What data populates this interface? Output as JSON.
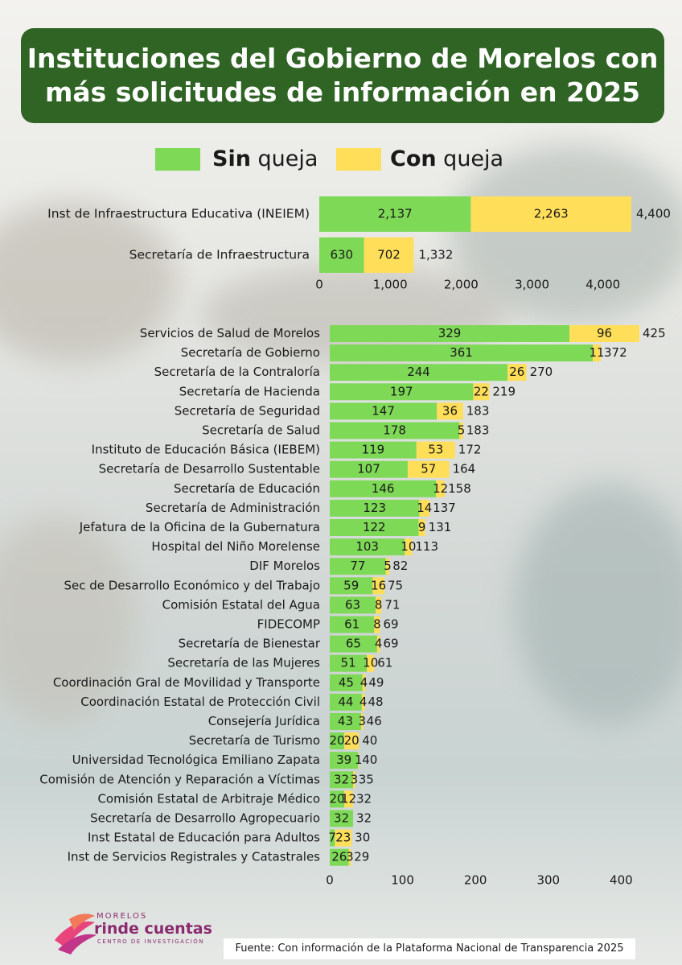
{
  "title": {
    "line1": "Instituciones del Gobierno de Morelos con",
    "line2": "más solicitudes de información en 2025"
  },
  "legend": {
    "sin_bold": "Sin",
    "sin_rest": " queja",
    "con_bold": "Con",
    "con_rest": " queja"
  },
  "colors": {
    "sin_queja": "#7ed957",
    "con_queja": "#ffde59",
    "title_bg": "#2f6424"
  },
  "chart_data": [
    {
      "type": "bar",
      "orientation": "horizontal",
      "stacked": true,
      "categories": [
        "Inst de Infraestructura Educativa (INEIEM)",
        "Secretaría de Infraestructura"
      ],
      "series": [
        {
          "name": "Sin queja",
          "values": [
            2137,
            630
          ],
          "labels": [
            "2,137",
            "630"
          ]
        },
        {
          "name": "Con queja",
          "values": [
            2263,
            702
          ],
          "labels": [
            "2,263",
            "702"
          ]
        }
      ],
      "totals": [
        4400,
        1332
      ],
      "total_labels": [
        "4,400",
        "1,332"
      ],
      "xlim": [
        0,
        4500
      ],
      "xticks": [
        0,
        1000,
        2000,
        3000,
        4000
      ],
      "xtick_labels": [
        "0",
        "1,000",
        "2,000",
        "3,000",
        "4,000"
      ]
    },
    {
      "type": "bar",
      "orientation": "horizontal",
      "stacked": true,
      "categories": [
        "Servicios de Salud de Morelos",
        "Secretaría de Gobierno",
        "Secretaría de la Contraloría",
        "Secretaría de Hacienda",
        "Secretaría de Seguridad",
        "Secretaría de Salud",
        "Instituto de Educación Básica (IEBEM)",
        "Secretaría de Desarrollo Sustentable",
        "Secretaría de Educación",
        "Secretaría de Administración",
        "Jefatura de la Oficina de la Gubernatura",
        "Hospital del Niño Morelense",
        "DIF Morelos",
        "Sec de Desarrollo Económico y del Trabajo",
        "Comisión Estatal del Agua",
        "FIDECOMP",
        "Secretaría de Bienestar",
        "Secretaría de las Mujeres",
        "Coordinación Gral de Movilidad y Transporte",
        "Coordinación Estatal de Protección Civil",
        "Consejería Jurídica",
        "Secretaría de Turismo",
        "Universidad Tecnológica Emiliano Zapata",
        "Comisión de Atención y Reparación a Víctimas",
        "Comisión Estatal de Arbitraje Médico",
        "Secretaría de Desarrollo Agropecuario",
        "Inst Estatal de Educación para Adultos",
        "Inst de Servicios Registrales y Catastrales"
      ],
      "series": [
        {
          "name": "Sin queja",
          "values": [
            329,
            361,
            244,
            197,
            147,
            178,
            119,
            107,
            146,
            123,
            122,
            103,
            77,
            59,
            63,
            61,
            65,
            51,
            45,
            44,
            43,
            20,
            39,
            32,
            20,
            32,
            7,
            26
          ]
        },
        {
          "name": "Con queja",
          "values": [
            96,
            11,
            26,
            22,
            36,
            5,
            53,
            57,
            12,
            14,
            9,
            10,
            5,
            16,
            8,
            8,
            4,
            10,
            4,
            4,
            3,
            20,
            1,
            3,
            12,
            null,
            23,
            3
          ]
        }
      ],
      "totals": [
        425,
        372,
        270,
        219,
        183,
        183,
        172,
        164,
        158,
        137,
        131,
        113,
        82,
        75,
        71,
        69,
        69,
        61,
        49,
        48,
        46,
        40,
        40,
        35,
        32,
        32,
        30,
        29
      ],
      "xlim": [
        0,
        440
      ],
      "xticks": [
        0,
        100,
        200,
        300,
        400
      ],
      "xtick_labels": [
        "0",
        "100",
        "200",
        "300",
        "400"
      ]
    }
  ],
  "logo": {
    "top": "MORELOS",
    "main": "rinde cuentas",
    "sub": "CENTRO DE INVESTIGACIÓN"
  },
  "source": "Fuente: Con información de la Plataforma Nacional de Transparencia 2025"
}
